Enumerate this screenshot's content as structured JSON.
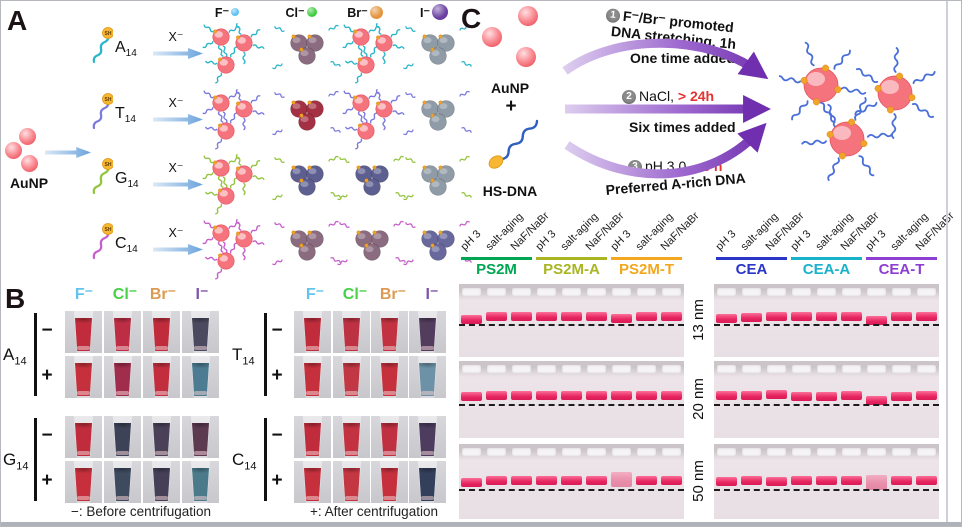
{
  "colors": {
    "dispersed": "#f4737c",
    "agg_mauve": "#8b6b7f",
    "agg_red": "#a43043",
    "agg_navy": "#5e5f91",
    "agg_gray": "#8f9ba6",
    "agg_indigo": "#68689d",
    "blue_arrow": "#6aa3dc",
    "purple_arrow": "#6f2fae",
    "gel_band_pink": "#e62560",
    "step_green": "#18a85a",
    "step_red": "#e63232"
  },
  "panel_a": {
    "label": "A",
    "aunp_label": "AuNP",
    "x_label": "X⁻",
    "sh_label": "SH",
    "ions": [
      {
        "label": "F⁻",
        "color": "#5ec1f0",
        "dot": 8
      },
      {
        "label": "Cl⁻",
        "color": "#3fcc3f",
        "dot": 10
      },
      {
        "label": "Br⁻",
        "color": "#e3943c",
        "dot": 13
      },
      {
        "label": "I⁻",
        "color": "#6a3fa0",
        "dot": 16
      }
    ],
    "rows": [
      {
        "base": "A",
        "sub": "14",
        "dna_color": "#2ab6c9",
        "results": [
          "dispersed",
          "agg_mauve",
          "dispersed",
          "agg_gray"
        ]
      },
      {
        "base": "T",
        "sub": "14",
        "dna_color": "#7b79dd",
        "results": [
          "dispersed",
          "agg_red",
          "dispersed",
          "agg_gray"
        ]
      },
      {
        "base": "G",
        "sub": "14",
        "dna_color": "#93c43e",
        "results": [
          "dispersed",
          "agg_navy",
          "agg_navy",
          "agg_gray"
        ]
      },
      {
        "base": "C",
        "sub": "14",
        "dna_color": "#c45ecb",
        "results": [
          "dispersed",
          "agg_mauve",
          "agg_mauve",
          "agg_indigo"
        ]
      }
    ]
  },
  "panel_b": {
    "label": "B",
    "ions": [
      {
        "label": "F⁻",
        "color": "#62c4ee"
      },
      {
        "label": "Cl⁻",
        "color": "#47d147"
      },
      {
        "label": "Br⁻",
        "color": "#dd9a52"
      },
      {
        "label": "I⁻",
        "color": "#7e54ad"
      }
    ],
    "minus_caption": "−: Before centrifugation",
    "plus_caption": "+: After centrifugation",
    "groups": [
      {
        "base": "A",
        "sub": "14",
        "side": "left",
        "slot": 0,
        "rows": [
          {
            "sign": "−",
            "colors": [
              "#c02c3c",
              "#bd2e44",
              "#c02c3c",
              "#49495f"
            ]
          },
          {
            "sign": "+",
            "colors": [
              "#c5303c",
              "#a12d4c",
              "#c22e3e",
              "#4c7c91"
            ]
          }
        ]
      },
      {
        "base": "G",
        "sub": "14",
        "side": "left",
        "slot": 1,
        "rows": [
          {
            "sign": "−",
            "colors": [
              "#c02c3c",
              "#3c4357",
              "#4a4158",
              "#5c3a50"
            ]
          },
          {
            "sign": "+",
            "colors": [
              "#c5303c",
              "#3e4a5e",
              "#454057",
              "#4b7a8b"
            ]
          }
        ]
      },
      {
        "base": "T",
        "sub": "14",
        "side": "right",
        "slot": 0,
        "rows": [
          {
            "sign": "−",
            "colors": [
              "#c02c3c",
              "#bd3242",
              "#c23240",
              "#533d5d"
            ]
          },
          {
            "sign": "+",
            "colors": [
              "#c5303c",
              "#c23744",
              "#c5303c",
              "#6d92a7"
            ]
          }
        ]
      },
      {
        "base": "C",
        "sub": "14",
        "side": "right",
        "slot": 1,
        "rows": [
          {
            "sign": "−",
            "colors": [
              "#c02c3c",
              "#c23240",
              "#bf3040",
              "#4d3c5e"
            ]
          },
          {
            "sign": "+",
            "colors": [
              "#c5303c",
              "#c33642",
              "#c5303c",
              "#333f5b"
            ]
          }
        ]
      }
    ]
  },
  "panel_c": {
    "label": "C",
    "aunp_label": "AuNP",
    "plus_sign": "+",
    "hsdna_label": "HS-DNA",
    "steps": [
      {
        "num": "1",
        "text1": "F⁻/Br⁻ promoted",
        "text2": "DNA stretching, 1h",
        "text3": "One time added"
      },
      {
        "num": "2",
        "text_black": "NaCl,",
        "text_red": "> 24h",
        "text3": "Six times added"
      },
      {
        "num": "3",
        "text_black": "pH 3.0,",
        "text_red": "~3 h",
        "text3": "Preferred A-rich DNA"
      }
    ],
    "gel": {
      "lane_labels": [
        "pH 3",
        "salt-aging",
        "NaF/NaBr"
      ],
      "left_groups": [
        {
          "name": "PS2M",
          "color": "#00a651"
        },
        {
          "name": "PS2M-A",
          "color": "#a9b621"
        },
        {
          "name": "PS2M-T",
          "color": "#f2a71e"
        }
      ],
      "right_groups": [
        {
          "name": "CEA",
          "color": "#2b35c8"
        },
        {
          "name": "CEA-A",
          "color": "#17b3cb"
        },
        {
          "name": "CEA-T",
          "color": "#8d3fd1"
        }
      ],
      "row_sizes": [
        "13 nm",
        "20 nm",
        "50 nm"
      ],
      "left_bands": [
        [
          3,
          0,
          0,
          0,
          0,
          0,
          2,
          0,
          0
        ],
        [
          1,
          0,
          0,
          0,
          0,
          0,
          0,
          0,
          0
        ],
        [
          2,
          0,
          0,
          0,
          0,
          0,
          0,
          0,
          0
        ]
      ],
      "left_faint": [
        [],
        [],
        [
          6
        ]
      ],
      "right_bands": [
        [
          2,
          1,
          0,
          0,
          0,
          0,
          4,
          0,
          0
        ],
        [
          0,
          0,
          -1,
          1,
          1,
          0,
          5,
          1,
          0
        ],
        [
          1,
          0,
          1,
          0,
          0,
          0,
          3,
          0,
          0
        ]
      ],
      "right_faint": [
        [],
        [],
        [
          6
        ]
      ]
    }
  }
}
